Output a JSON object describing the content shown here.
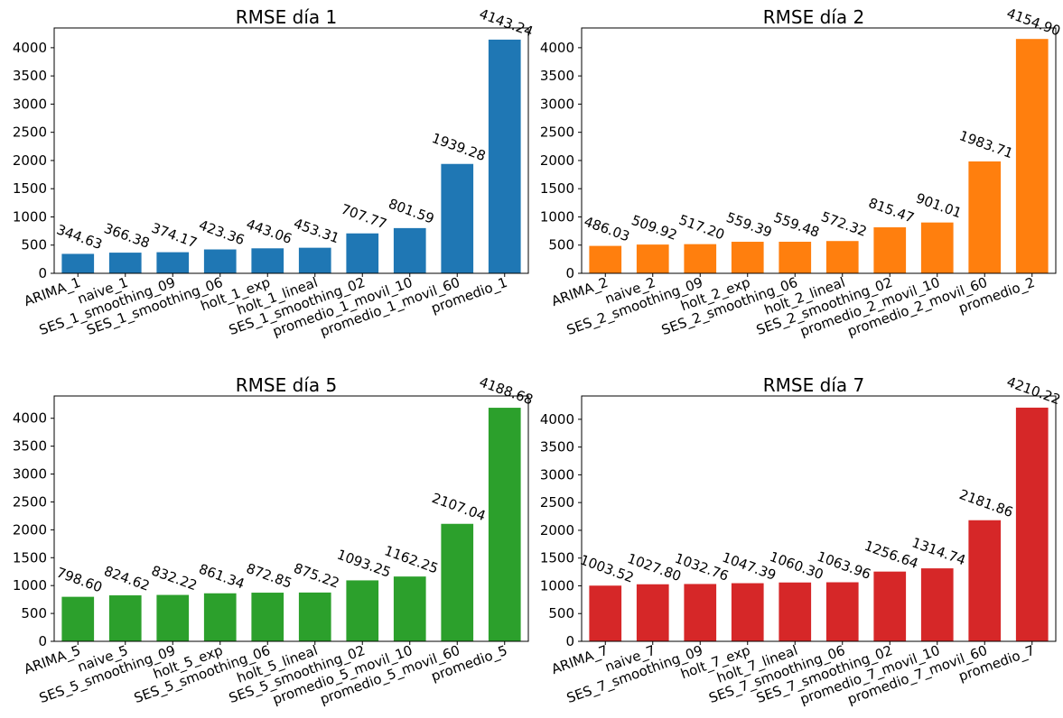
{
  "chart_data": [
    {
      "type": "bar",
      "title": "RMSE día 1",
      "color": "#1f77b4",
      "ylim": [
        0,
        4350
      ],
      "yticks": [
        0,
        500,
        1000,
        1500,
        2000,
        2500,
        3000,
        3500,
        4000
      ],
      "grid": false,
      "categories": [
        "ARIMA_1",
        "naive_1",
        "SES_1_smoothing_09",
        "SES_1_smoothing_06",
        "holt_1_exp",
        "holt_1_lineal",
        "SES_1_smoothing_02",
        "promedio_1_movil_10",
        "promedio_1_movil_60",
        "promedio_1"
      ],
      "values": [
        344.63,
        366.38,
        374.17,
        423.36,
        443.06,
        453.31,
        707.77,
        801.59,
        1939.28,
        4143.24
      ],
      "labels": [
        "344.63",
        "366.38",
        "374.17",
        "423.36",
        "443.06",
        "453.31",
        "707.77",
        "801.59",
        "1939.28",
        "4143.24"
      ]
    },
    {
      "type": "bar",
      "title": "RMSE día 2",
      "color": "#ff7f0e",
      "ylim": [
        0,
        4350
      ],
      "yticks": [
        0,
        500,
        1000,
        1500,
        2000,
        2500,
        3000,
        3500,
        4000
      ],
      "grid": false,
      "categories": [
        "ARIMA_2",
        "naive_2",
        "SES_2_smoothing_09",
        "holt_2_exp",
        "SES_2_smoothing_06",
        "holt_2_lineal",
        "SES_2_smoothing_02",
        "promedio_2_movil_10",
        "promedio_2_movil_60",
        "promedio_2"
      ],
      "values": [
        486.03,
        509.92,
        517.2,
        559.39,
        559.48,
        572.32,
        815.47,
        901.01,
        1983.71,
        4154.9
      ],
      "labels": [
        "486.03",
        "509.92",
        "517.20",
        "559.39",
        "559.48",
        "572.32",
        "815.47",
        "901.01",
        "1983.71",
        "4154.90"
      ]
    },
    {
      "type": "bar",
      "title": "RMSE día 5",
      "color": "#2ca02c",
      "ylim": [
        0,
        4400
      ],
      "yticks": [
        0,
        500,
        1000,
        1500,
        2000,
        2500,
        3000,
        3500,
        4000
      ],
      "grid": false,
      "categories": [
        "ARIMA_5",
        "naive_5",
        "SES_5_smoothing_09",
        "holt_5_exp",
        "SES_5_smoothing_06",
        "holt_5_lineal",
        "SES_5_smoothing_02",
        "promedio_5_movil_10",
        "promedio_5_movil_60",
        "promedio_5"
      ],
      "values": [
        798.6,
        824.62,
        832.22,
        861.34,
        872.85,
        875.22,
        1093.25,
        1162.25,
        2107.04,
        4188.68
      ],
      "labels": [
        "798.60",
        "824.62",
        "832.22",
        "861.34",
        "872.85",
        "875.22",
        "1093.25",
        "1162.25",
        "2107.04",
        "4188.68"
      ]
    },
    {
      "type": "bar",
      "title": "RMSE día 7",
      "color": "#d62728",
      "ylim": [
        0,
        4420
      ],
      "yticks": [
        0,
        500,
        1000,
        1500,
        2000,
        2500,
        3000,
        3500,
        4000
      ],
      "grid": false,
      "categories": [
        "ARIMA_7",
        "naive_7",
        "SES_7_smoothing_09",
        "holt_7_exp",
        "holt_7_lineal",
        "SES_7_smoothing_06",
        "SES_7_smoothing_02",
        "promedio_7_movil_10",
        "promedio_7_movil_60",
        "promedio_7"
      ],
      "values": [
        1003.52,
        1027.8,
        1032.76,
        1047.39,
        1060.3,
        1063.96,
        1256.64,
        1314.74,
        2181.86,
        4210.22
      ],
      "labels": [
        "1003.52",
        "1027.80",
        "1032.76",
        "1047.39",
        "1060.30",
        "1063.96",
        "1256.64",
        "1314.74",
        "2181.86",
        "4210.22"
      ]
    }
  ]
}
